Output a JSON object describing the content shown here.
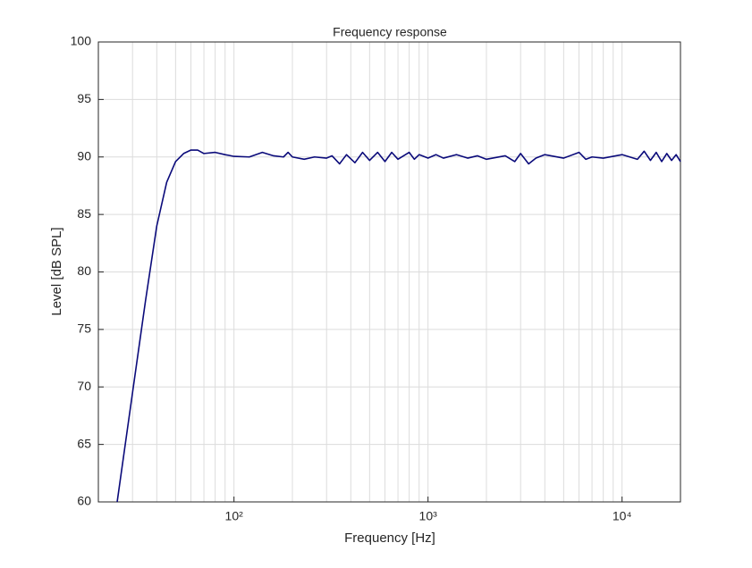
{
  "chart_data": {
    "type": "line",
    "title": "Frequency response",
    "xlabel": "Frequency [Hz]",
    "ylabel": "Level [dB SPL]",
    "log_x": true,
    "grid": true,
    "xlim": [
      20,
      20000
    ],
    "ylim": [
      60,
      100
    ],
    "xticks": [
      {
        "value": 100,
        "label": "10²"
      },
      {
        "value": 1000,
        "label": "10³"
      },
      {
        "value": 10000,
        "label": "10⁴"
      }
    ],
    "xminorticks": [
      20,
      30,
      40,
      50,
      60,
      70,
      80,
      90,
      200,
      300,
      400,
      500,
      600,
      700,
      800,
      900,
      2000,
      3000,
      4000,
      5000,
      6000,
      7000,
      8000,
      9000,
      20000
    ],
    "yticks": [
      60,
      65,
      70,
      75,
      80,
      85,
      90,
      95,
      100
    ],
    "x": [
      25,
      30,
      35,
      40,
      45,
      50,
      55,
      60,
      65,
      70,
      80,
      90,
      100,
      120,
      140,
      160,
      180,
      190,
      200,
      230,
      260,
      300,
      320,
      350,
      380,
      420,
      460,
      500,
      550,
      600,
      650,
      700,
      800,
      850,
      900,
      1000,
      1100,
      1200,
      1400,
      1600,
      1800,
      2000,
      2500,
      2800,
      3000,
      3300,
      3600,
      4000,
      5000,
      6000,
      6500,
      7000,
      8000,
      10000,
      12000,
      13000,
      14000,
      15000,
      16000,
      17000,
      18000,
      19000,
      20000
    ],
    "series": [
      {
        "name": "Level",
        "color": "#0a0a7a",
        "values": [
          60,
          69.5,
          77.5,
          84,
          87.8,
          89.6,
          90.3,
          90.6,
          90.6,
          90.3,
          90.4,
          90.2,
          90.05,
          90,
          90.4,
          90.1,
          90,
          90.4,
          90,
          89.8,
          90,
          89.9,
          90.1,
          89.4,
          90.2,
          89.5,
          90.4,
          89.7,
          90.4,
          89.6,
          90.4,
          89.8,
          90.4,
          89.8,
          90.2,
          89.9,
          90.2,
          89.9,
          90.2,
          89.9,
          90.1,
          89.8,
          90.1,
          89.6,
          90.3,
          89.4,
          89.9,
          90.2,
          89.9,
          90.4,
          89.8,
          90,
          89.9,
          90.2,
          89.8,
          90.5,
          89.7,
          90.4,
          89.6,
          90.3,
          89.7,
          90.2,
          89.6
        ]
      }
    ]
  }
}
